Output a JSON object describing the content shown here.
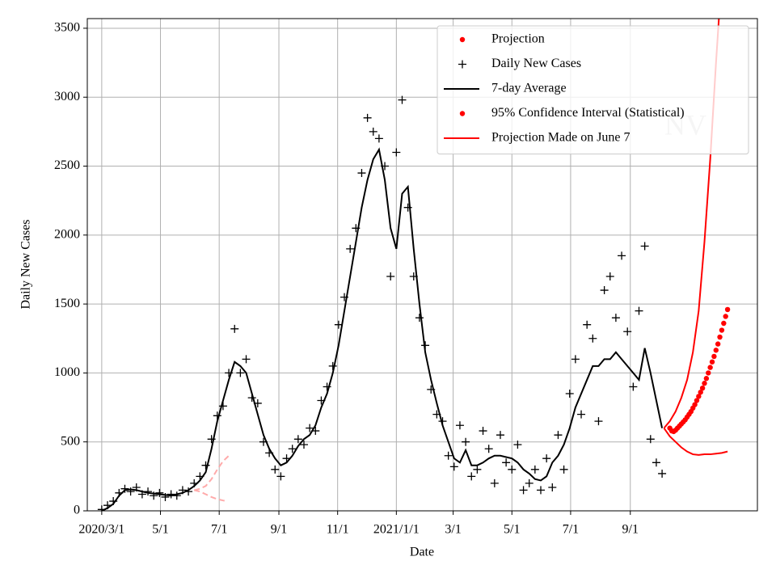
{
  "chart_data": {
    "type": "line",
    "xlabel": "Date",
    "ylabel": "Daily New Cases",
    "watermark": "NV",
    "grid": true,
    "legend": "upper right",
    "xlim": [
      -15,
      681
    ],
    "ylim": [
      0,
      3570
    ],
    "xticks": [
      {
        "value": 0,
        "label": "2020/3/1"
      },
      {
        "value": 61,
        "label": "5/1"
      },
      {
        "value": 122,
        "label": "7/1"
      },
      {
        "value": 184,
        "label": "9/1"
      },
      {
        "value": 245,
        "label": "11/1"
      },
      {
        "value": 306,
        "label": "2021/1/1"
      },
      {
        "value": 365,
        "label": "3/1"
      },
      {
        "value": 426,
        "label": "5/1"
      },
      {
        "value": 487,
        "label": "7/1"
      },
      {
        "value": 549,
        "label": "9/1"
      }
    ],
    "yticks": [
      0,
      500,
      1000,
      1500,
      2000,
      2500,
      3000,
      3500
    ],
    "x": [
      0,
      6,
      12,
      18,
      24,
      30,
      36,
      42,
      48,
      54,
      60,
      66,
      72,
      78,
      84,
      90,
      96,
      102,
      108,
      114,
      120,
      126,
      132,
      138,
      144,
      150,
      156,
      162,
      168,
      174,
      180,
      186,
      192,
      198,
      204,
      210,
      216,
      222,
      228,
      234,
      240,
      246,
      252,
      258,
      264,
      270,
      276,
      282,
      288,
      294,
      300,
      306,
      312,
      318,
      324,
      330,
      336,
      342,
      348,
      354,
      360,
      366,
      372,
      378,
      384,
      390,
      396,
      402,
      408,
      414,
      420,
      426,
      432,
      438,
      444,
      450,
      456,
      462,
      468,
      474,
      480,
      486,
      492,
      498,
      504,
      510,
      516,
      522,
      528,
      534,
      540,
      546,
      552,
      558,
      564,
      570,
      576,
      582
    ],
    "series": [
      {
        "name": "Projection",
        "color": "#ff0000",
        "marker": "dot",
        "x": [
          590,
          592,
          594,
          596,
          598,
          600,
          602,
          604,
          606,
          608,
          610,
          612,
          614,
          616,
          618,
          620,
          622,
          624,
          626,
          628,
          630,
          632,
          634,
          636,
          638,
          640,
          642,
          644,
          646,
          648,
          650
        ],
        "values": [
          600,
          580,
          575,
          585,
          600,
          615,
          630,
          645,
          660,
          680,
          700,
          720,
          745,
          770,
          800,
          830,
          860,
          890,
          925,
          960,
          1000,
          1040,
          1080,
          1120,
          1165,
          1210,
          1260,
          1310,
          1360,
          1410,
          1460
        ]
      },
      {
        "name": "Daily New Cases",
        "color": "#000000",
        "marker": "plus",
        "values": [
          10,
          40,
          70,
          130,
          160,
          140,
          170,
          120,
          140,
          110,
          130,
          100,
          120,
          110,
          150,
          140,
          200,
          250,
          330,
          520,
          690,
          760,
          1000,
          1320,
          1000,
          1100,
          820,
          780,
          500,
          420,
          300,
          250,
          380,
          450,
          520,
          480,
          600,
          580,
          800,
          900,
          1050,
          1350,
          1550,
          1900,
          2050,
          2450,
          2850,
          2750,
          2700,
          2500,
          1700,
          2600,
          2980,
          2200,
          1700,
          1400,
          1200,
          880,
          700,
          650,
          400,
          320,
          620,
          500,
          250,
          300,
          580,
          450,
          200,
          550,
          350,
          300,
          480,
          150,
          200,
          300,
          150,
          380,
          170,
          550,
          300,
          850,
          1100,
          700,
          1350,
          1250,
          650,
          1600,
          1700,
          1400,
          1850,
          1300,
          900,
          1450,
          1920,
          520,
          350,
          270
        ]
      },
      {
        "name": "7-day Average",
        "color": "#000000",
        "marker": "line",
        "values": [
          0,
          20,
          50,
          110,
          150,
          155,
          150,
          140,
          130,
          125,
          120,
          115,
          110,
          120,
          130,
          150,
          180,
          220,
          280,
          450,
          650,
          800,
          950,
          1080,
          1050,
          1000,
          850,
          700,
          550,
          450,
          380,
          330,
          350,
          400,
          470,
          520,
          550,
          620,
          750,
          850,
          1000,
          1200,
          1450,
          1700,
          1950,
          2200,
          2400,
          2550,
          2620,
          2400,
          2050,
          1900,
          2300,
          2350,
          1900,
          1500,
          1150,
          950,
          780,
          620,
          500,
          380,
          350,
          440,
          330,
          330,
          350,
          380,
          400,
          400,
          390,
          380,
          350,
          300,
          270,
          230,
          220,
          250,
          350,
          400,
          480,
          600,
          750,
          850,
          950,
          1050,
          1050,
          1100,
          1100,
          1150,
          1100,
          1050,
          1000,
          950,
          1180,
          1000,
          800,
          600
        ]
      },
      {
        "name": "95% Confidence Interval (Statistical)",
        "color": "#ffaaaa",
        "marker": "dashed",
        "legend_marker": "dot",
        "legend_color": "#ff0000",
        "x": [
          96,
          102,
          108,
          114,
          120,
          126,
          130
        ],
        "values": [
          150,
          140,
          120,
          100,
          85,
          75,
          70
        ]
      },
      {
        "name": "Projection Made on June 7",
        "color": "#ff0000",
        "marker": "line",
        "x": [
          584,
          590,
          596,
          602,
          608,
          614,
          620,
          626,
          632,
          638,
          644,
          650
        ],
        "values": [
          600,
          540,
          500,
          460,
          430,
          410,
          405,
          410,
          410,
          415,
          420,
          430
        ]
      },
      {
        "color": "#ffaaaa",
        "marker": "dashed",
        "x": [
          96,
          102,
          108,
          114,
          120,
          126,
          132
        ],
        "values": [
          150,
          160,
          180,
          230,
          300,
          360,
          400
        ]
      },
      {
        "color": "#ff0000",
        "marker": "line",
        "x": [
          584,
          590,
          596,
          602,
          608,
          614,
          620,
          626,
          632,
          638,
          641
        ],
        "values": [
          600,
          650,
          720,
          820,
          950,
          1150,
          1450,
          1950,
          2550,
          3250,
          3570
        ]
      }
    ]
  }
}
